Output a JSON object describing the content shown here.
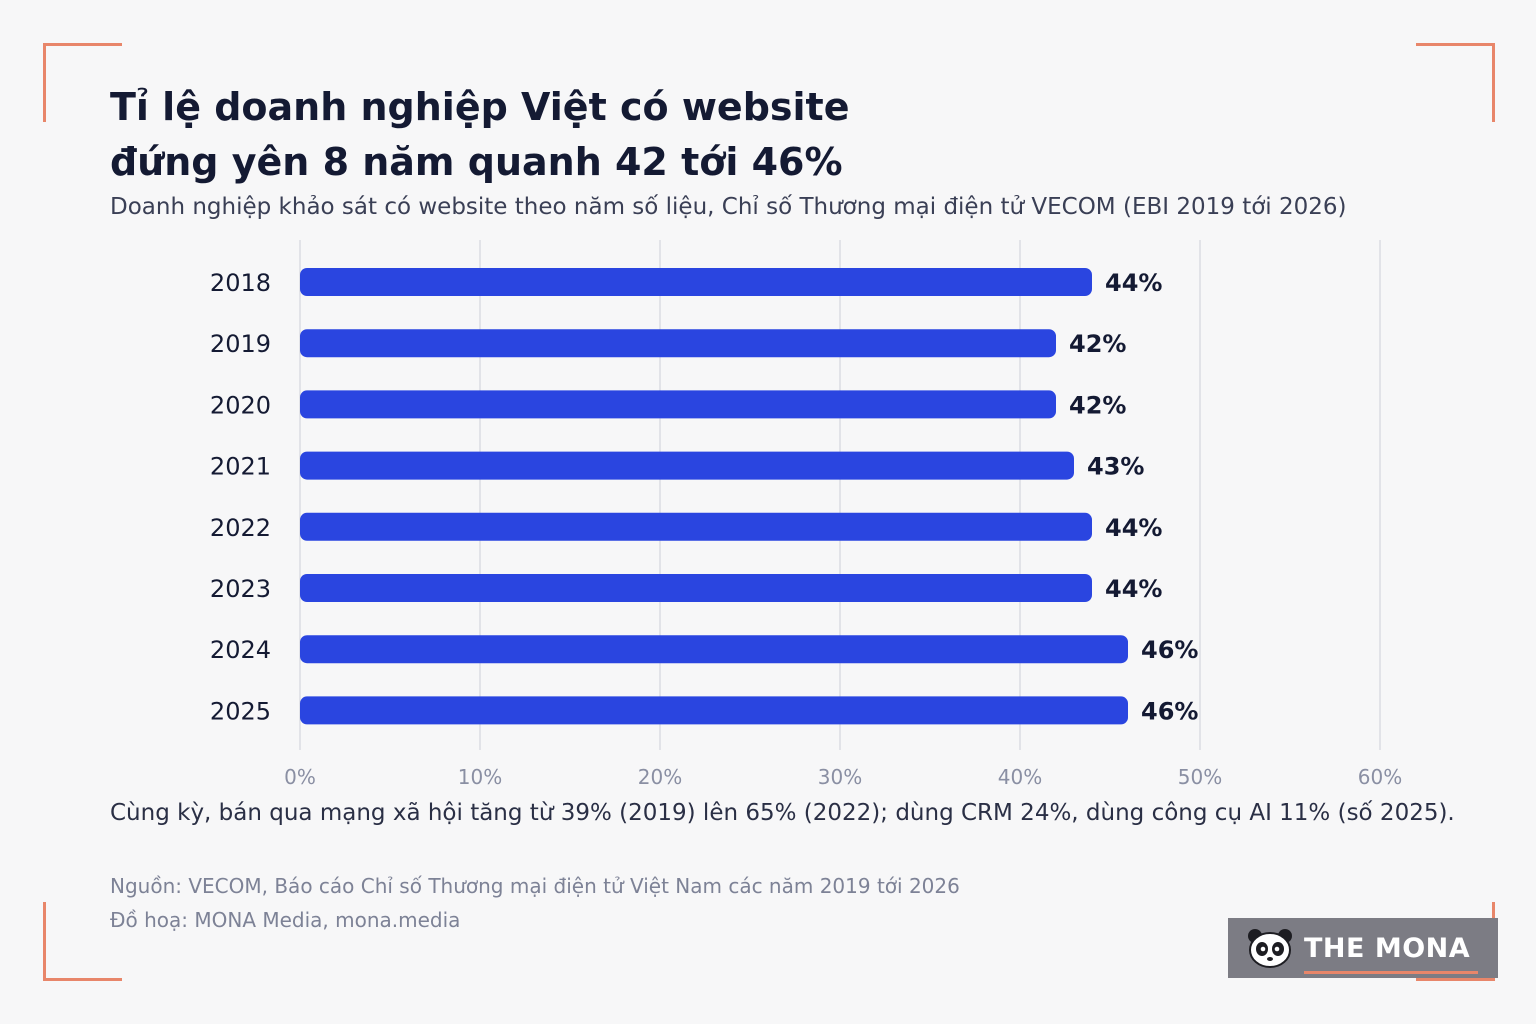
{
  "title_lines": [
    "Tỉ lệ doanh nghiệp Việt có website",
    "đứng yên 8 năm quanh 42 tới 46%"
  ],
  "subtitle": "Doanh nghiệp khảo sát có website theo năm số liệu, Chỉ số Thương mại điện tử VECOM (EBI 2019 tới 2026)",
  "note": "Cùng kỳ, bán qua mạng xã hội tăng từ 39% (2019) lên 65% (2022); dùng CRM 24%, dùng công cụ AI 11% (số 2025).",
  "source": "Nguồn: VECOM, Báo cáo Chỉ số Thương mại điện tử Việt Nam các năm 2019 tới 2026",
  "credit": "Đồ hoạ: MONA Media, mona.media",
  "logo": {
    "text": "THE MONA",
    "icon": "panda-icon",
    "underline_color": "#e8866a"
  },
  "colors": {
    "bar": "#2a45e0",
    "accent": "#e8866a",
    "text": "#141a33",
    "grid": "#e2e3e8"
  },
  "chart_data": {
    "type": "bar",
    "orientation": "horizontal",
    "categories": [
      "2018",
      "2019",
      "2020",
      "2021",
      "2022",
      "2023",
      "2024",
      "2025"
    ],
    "values": [
      44,
      42,
      42,
      43,
      44,
      44,
      46,
      46
    ],
    "value_labels": [
      "44%",
      "42%",
      "42%",
      "43%",
      "44%",
      "44%",
      "46%",
      "46%"
    ],
    "xlim": [
      0,
      60
    ],
    "x_ticks": [
      0,
      10,
      20,
      30,
      40,
      50,
      60
    ],
    "x_tick_labels": [
      "0%",
      "10%",
      "20%",
      "30%",
      "40%",
      "50%",
      "60%"
    ],
    "grid": true
  }
}
